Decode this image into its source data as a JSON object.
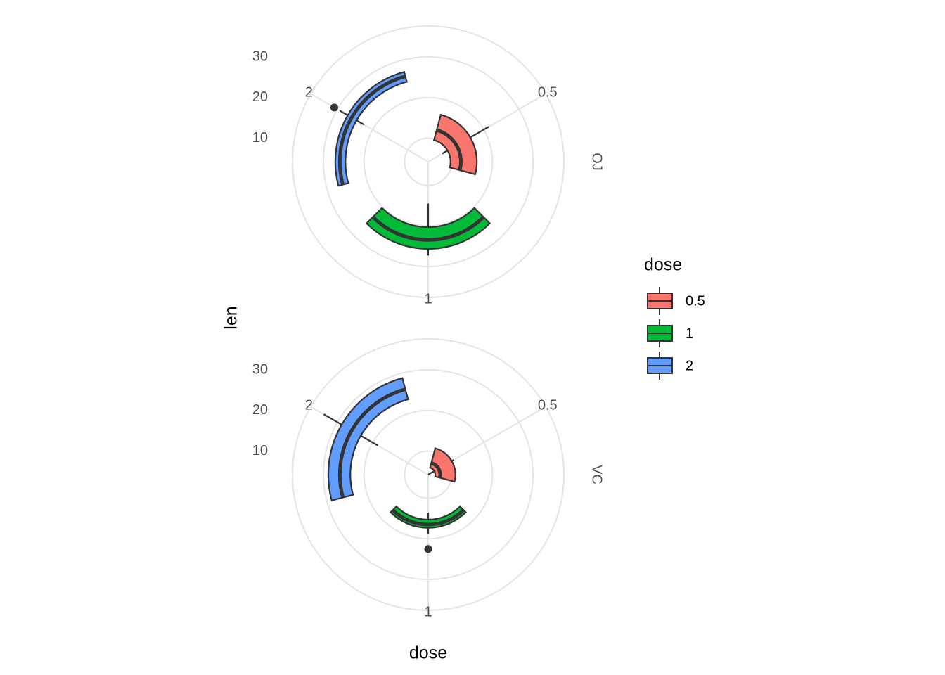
{
  "chart_data": {
    "type": "boxplot",
    "coord": "polar",
    "x_label": "dose",
    "y_label": "len",
    "legend_title": "dose",
    "legend": "right",
    "grid": true,
    "categories": [
      "0.5",
      "1",
      "2"
    ],
    "colors": [
      "#F8766D",
      "#00BA38",
      "#619CFF"
    ],
    "ylim": [
      4.2,
      33.9
    ],
    "yticks": [
      10,
      20,
      30
    ],
    "facets": [
      {
        "label": "OJ",
        "boxes": [
          {
            "min": 8.2,
            "q1": 9.7,
            "median": 12.25,
            "q3": 16.175,
            "max": 21.5
          },
          {
            "min": 14.5,
            "q1": 20.3,
            "median": 23.45,
            "q3": 25.65,
            "max": 27.3
          },
          {
            "min": 22.4,
            "q1": 24.575,
            "median": 25.95,
            "q3": 27.075,
            "max": 29.4,
            "outliers": [
              30.9
            ]
          }
        ]
      },
      {
        "label": "VC",
        "boxes": [
          {
            "min": 4.2,
            "q1": 5.95,
            "median": 7.15,
            "q3": 10.9,
            "max": 11.5
          },
          {
            "min": 13.6,
            "q1": 15.275,
            "median": 16.5,
            "q3": 17.3,
            "max": 18.8,
            "outliers": [
              22.5
            ]
          },
          {
            "min": 18.5,
            "q1": 23.375,
            "median": 25.95,
            "q3": 28.8,
            "max": 33.9
          }
        ]
      }
    ]
  }
}
